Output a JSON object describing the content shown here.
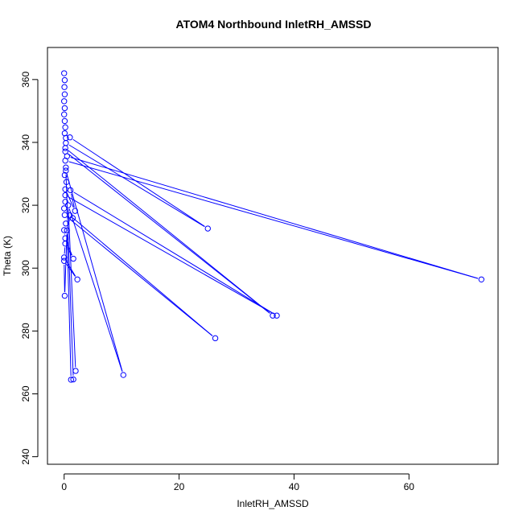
{
  "chart_data": {
    "type": "line",
    "title": "ATOM4 Northbound InletRH_AMSSD",
    "xlabel": "InletRH_AMSSD",
    "ylabel": "Theta (K)",
    "xlim": [
      -2.9,
      75.5
    ],
    "ylim": [
      237.6,
      370.2
    ],
    "x_ticks": [
      0,
      20,
      40,
      60
    ],
    "y_ticks": [
      240,
      260,
      280,
      300,
      320,
      340,
      360
    ],
    "grid": false,
    "legend": "none",
    "color": "#0000ff",
    "marker": "open-circle",
    "series": [
      {
        "values": [
          {
            "x": 0.0,
            "y": 362.0
          },
          {
            "x": 0.1,
            "y": 359.8
          },
          {
            "x": 0.05,
            "y": 357.6
          },
          {
            "x": 0.1,
            "y": 355.3
          },
          {
            "x": 0.0,
            "y": 353.1
          },
          {
            "x": 0.1,
            "y": 350.9
          },
          {
            "x": 0.0,
            "y": 348.9
          },
          {
            "x": 0.1,
            "y": 346.8
          },
          {
            "x": 0.2,
            "y": 344.8
          },
          {
            "x": 0.1,
            "y": 342.9
          },
          {
            "x": 0.3,
            "y": 341.4
          },
          {
            "x": 1.0,
            "y": 341.6
          },
          {
            "x": 25.0,
            "y": 312.6
          },
          {
            "x": 0.3,
            "y": 339.8
          },
          {
            "x": 0.2,
            "y": 338.2
          },
          {
            "x": 36.3,
            "y": 284.9
          },
          {
            "x": 0.2,
            "y": 337.1
          },
          {
            "x": 0.5,
            "y": 335.6
          },
          {
            "x": 72.6,
            "y": 296.4
          },
          {
            "x": 0.2,
            "y": 334.2
          },
          {
            "x": 0.3,
            "y": 332.0
          },
          {
            "x": 0.1,
            "y": 329.6
          },
          {
            "x": 0.4,
            "y": 327.4
          },
          {
            "x": 0.2,
            "y": 325.1
          },
          {
            "x": 1.9,
            "y": 318.2
          },
          {
            "x": 1.1,
            "y": 324.8
          },
          {
            "x": 37.0,
            "y": 284.9
          },
          {
            "x": 0.2,
            "y": 323.2
          },
          {
            "x": 0.2,
            "y": 321.1
          },
          {
            "x": 0.0,
            "y": 319.0
          },
          {
            "x": 1.0,
            "y": 316.8
          },
          {
            "x": 26.3,
            "y": 277.7
          },
          {
            "x": 0.1,
            "y": 316.9
          },
          {
            "x": 1.5,
            "y": 315.9
          },
          {
            "x": 0.3,
            "y": 314.2
          },
          {
            "x": 0.0,
            "y": 312.1
          },
          {
            "x": 0.2,
            "y": 309.5
          },
          {
            "x": 1.6,
            "y": 303.0
          },
          {
            "x": 0.2,
            "y": 307.8
          },
          {
            "x": 0.0,
            "y": 303.4
          },
          {
            "x": 2.3,
            "y": 296.4
          },
          {
            "x": 0.0,
            "y": 302.3
          },
          {
            "x": 0.1,
            "y": 291.2
          },
          {
            "x": 0.5,
            "y": 312.0
          },
          {
            "x": 1.2,
            "y": 264.5
          },
          {
            "x": 1.6,
            "y": 264.6
          },
          {
            "x": 0.3,
            "y": 331.0
          },
          {
            "x": 10.3,
            "y": 266.0
          },
          {
            "x": 0.7,
            "y": 320.0
          },
          {
            "x": 2.0,
            "y": 267.3
          }
        ]
      }
    ]
  }
}
